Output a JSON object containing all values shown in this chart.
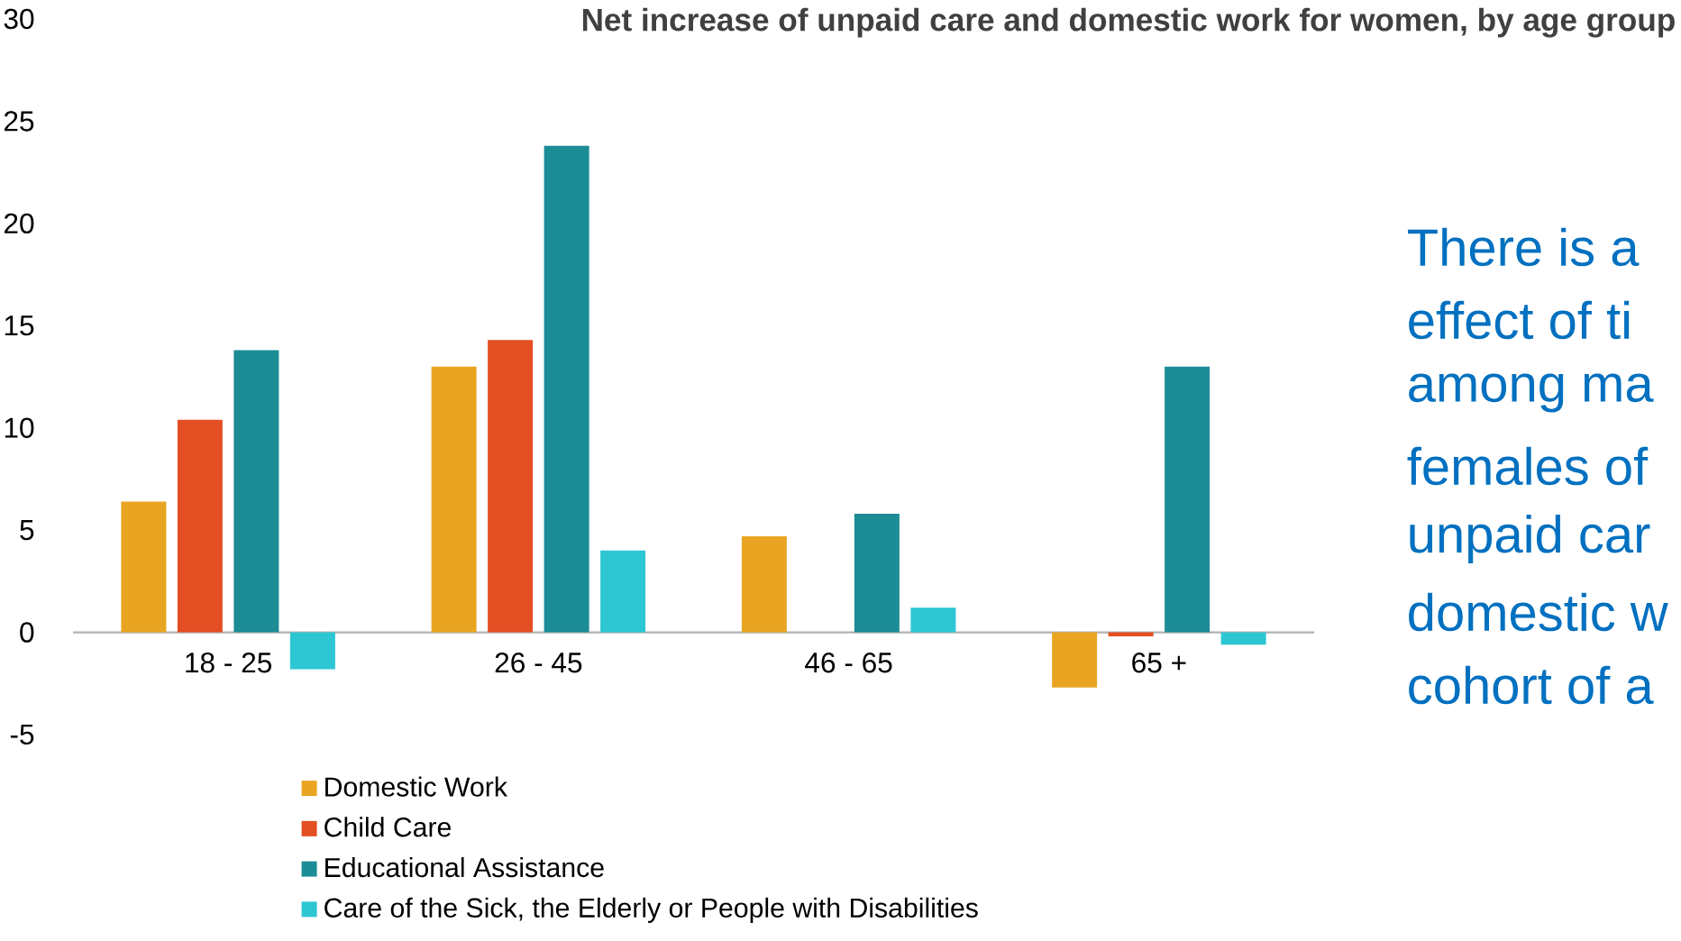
{
  "chart_data": {
    "type": "bar",
    "title": "Net increase of unpaid care and domestic work for women, by age group",
    "categories": [
      "18 - 25",
      "26 - 45",
      "46 - 65",
      "65 +"
    ],
    "series": [
      {
        "name": "Domestic Work",
        "color": "#e9a521",
        "values": [
          6.4,
          13.0,
          4.7,
          -2.7
        ]
      },
      {
        "name": "Child Care",
        "color": "#e34f22",
        "values": [
          10.4,
          14.3,
          0,
          -0.2
        ]
      },
      {
        "name": "Educational Assistance",
        "color": "#1c8c96",
        "values": [
          13.8,
          23.8,
          5.8,
          13.0
        ]
      },
      {
        "name": "Care of the Sick, the Elderly or People with Disabilities",
        "color": "#2dc6d3",
        "values": [
          -1.8,
          4.0,
          1.2,
          -0.6
        ]
      }
    ],
    "ylim": [
      -5,
      30
    ],
    "yticks": [
      -5,
      0,
      5,
      10,
      15,
      20,
      25,
      30
    ],
    "grid": false,
    "legend": "bottom",
    "annotations": [
      "There is a",
      "effect of ti",
      "among ma",
      "females of",
      "unpaid car",
      "domestic w",
      "cohort of a"
    ]
  }
}
